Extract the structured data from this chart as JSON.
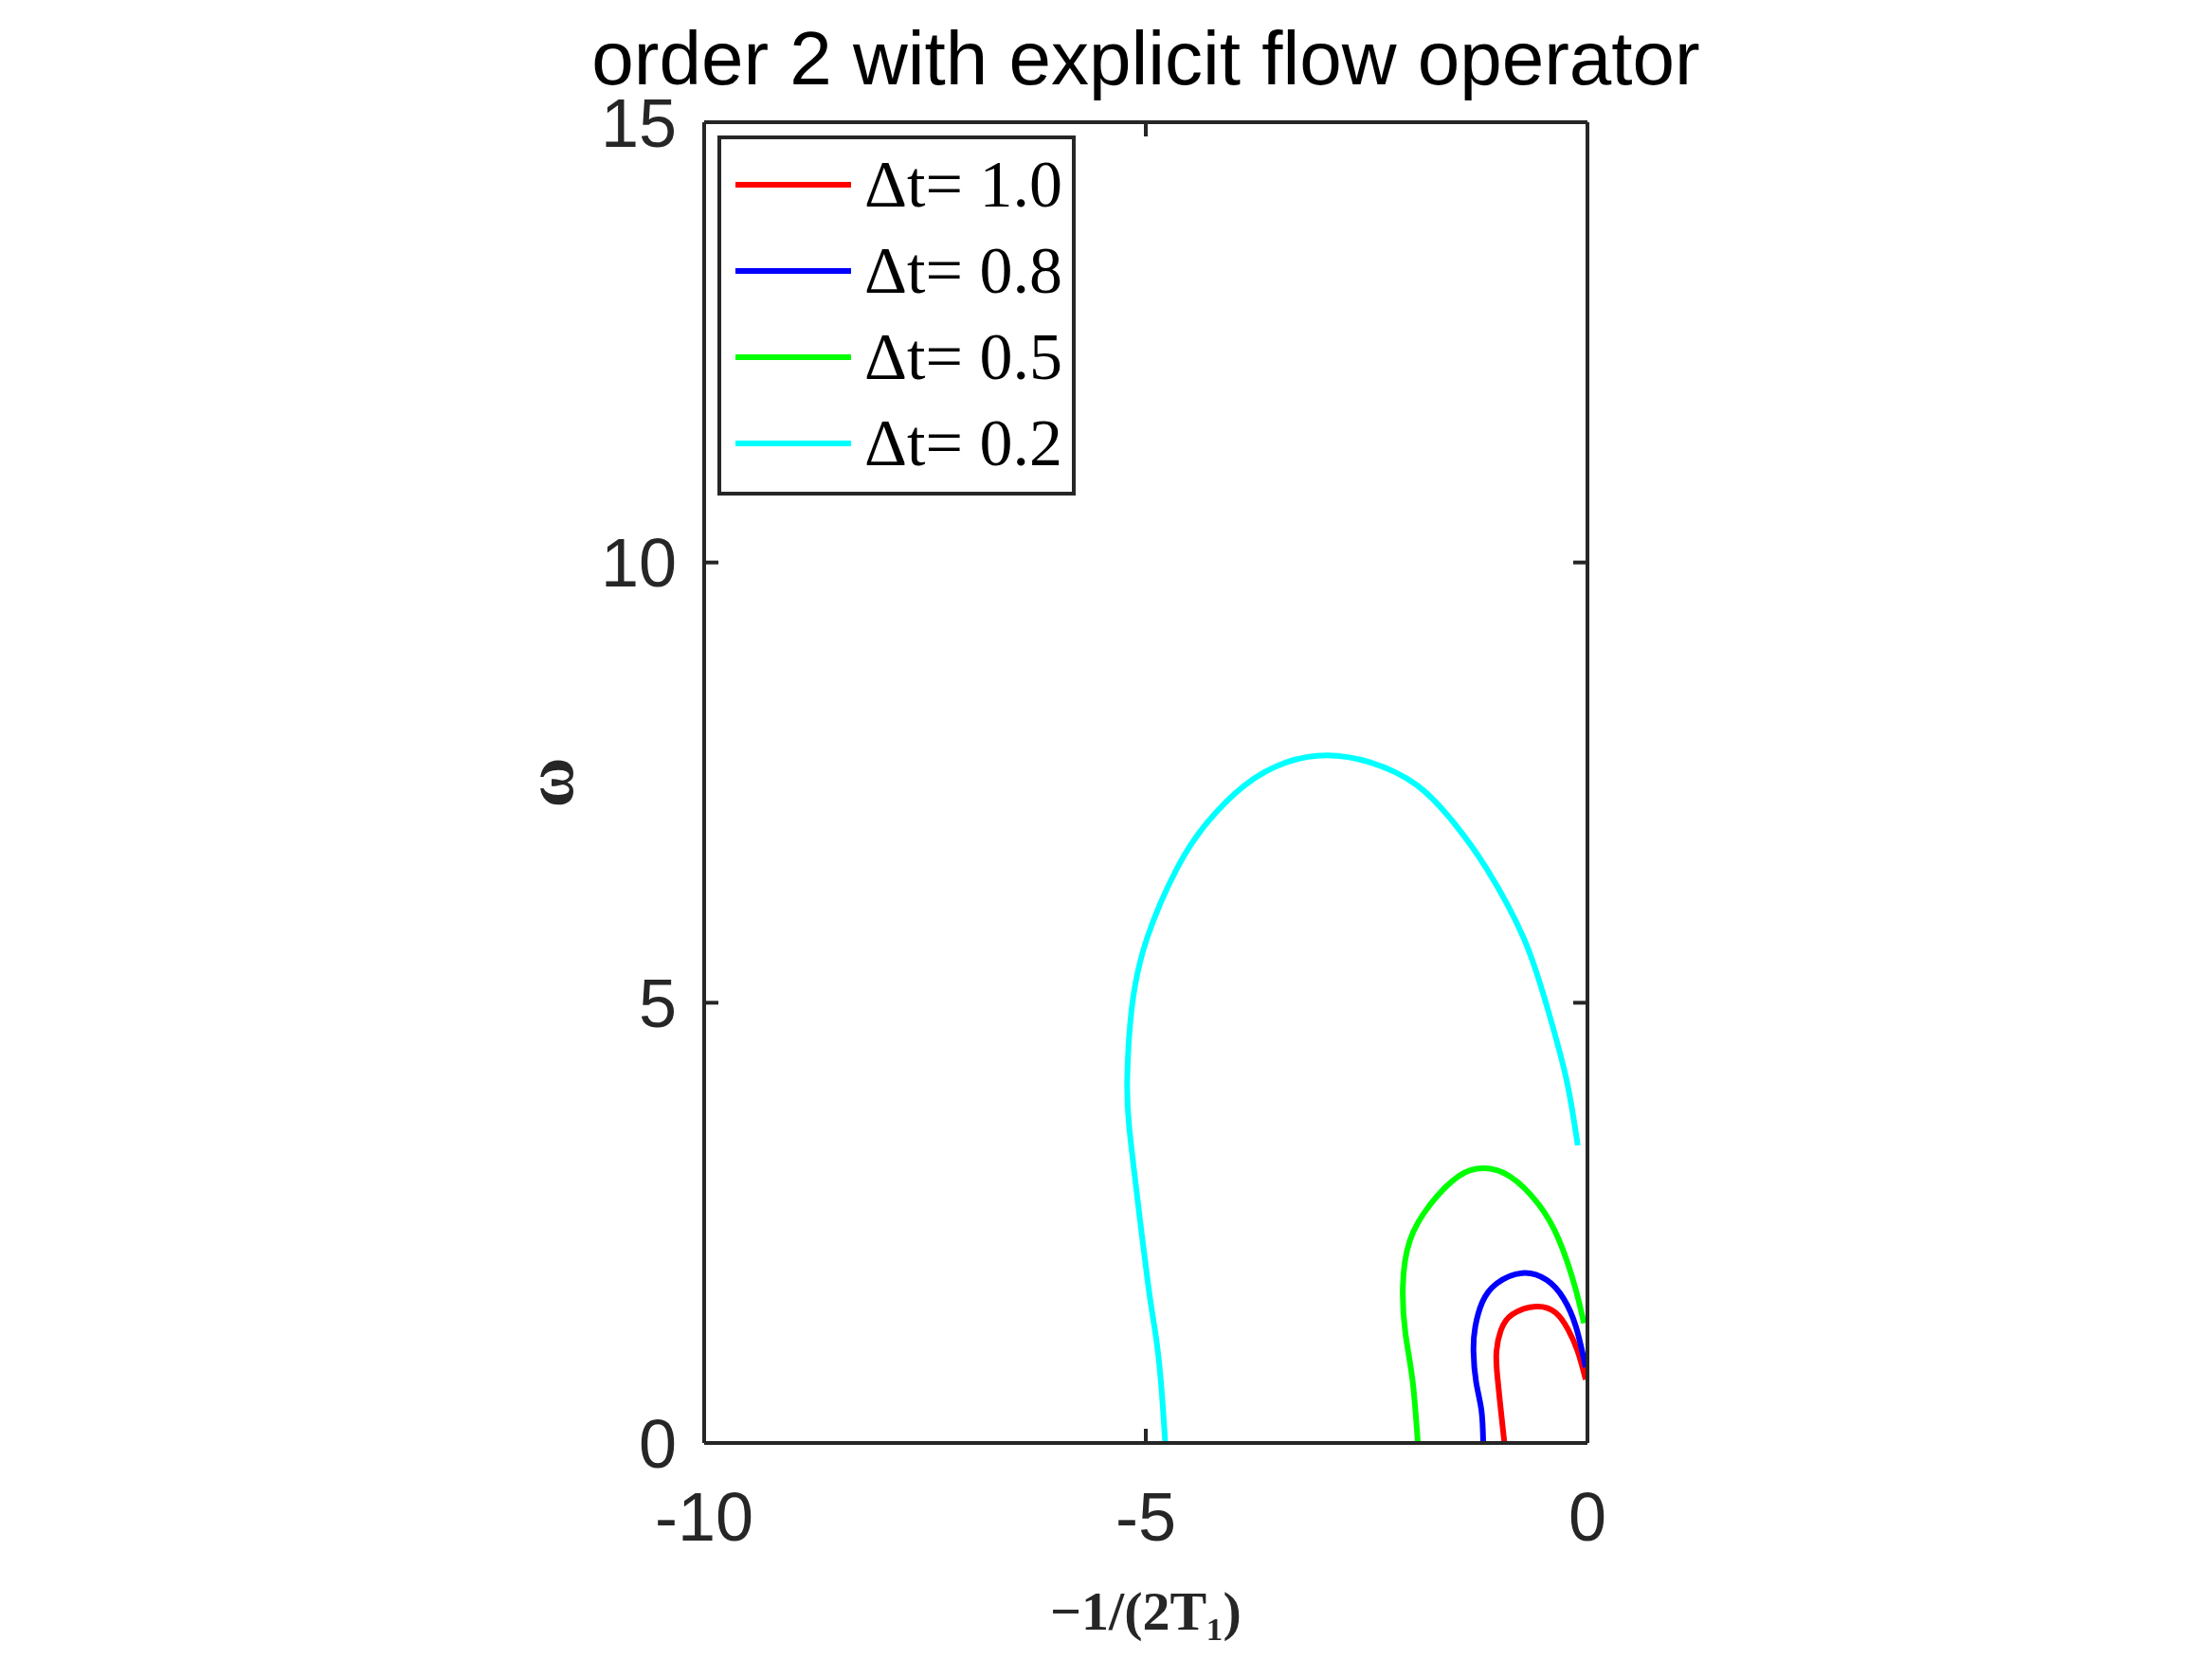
{
  "chart_data": {
    "type": "line",
    "title": "order 2 with explicit flow operator",
    "xlabel": "−1/(2T₁)",
    "ylabel": "ω",
    "xlim": [
      -10,
      0
    ],
    "ylim": [
      0,
      15
    ],
    "xticks": [
      -10,
      -5,
      0
    ],
    "yticks": [
      0,
      5,
      10,
      15
    ],
    "legend": "top left",
    "line_style": "solid",
    "series": [
      {
        "name": "Δt= 1.0",
        "color": "#ff0000",
        "x": [
          -0.94,
          -0.98,
          -1.02,
          -1.03,
          -0.98,
          -0.85,
          -0.58,
          -0.36,
          -0.22,
          -0.11,
          -0.02
        ],
        "values": [
          0,
          0.37,
          0.76,
          1.04,
          1.28,
          1.46,
          1.55,
          1.48,
          1.29,
          1.04,
          0.72
        ]
      },
      {
        "name": "Δt= 0.8",
        "color": "#0000ff",
        "x": [
          -1.18,
          -1.2,
          -1.26,
          -1.29,
          -1.27,
          -1.19,
          -1.03,
          -0.74,
          -0.46,
          -0.27,
          -0.13,
          -0.02
        ],
        "values": [
          0,
          0.37,
          0.69,
          1.04,
          1.32,
          1.6,
          1.81,
          1.93,
          1.85,
          1.64,
          1.32,
          0.86
        ]
      },
      {
        "name": "Δt= 0.5",
        "color": "#00ff00",
        "x": [
          -1.92,
          -1.98,
          -2.06,
          -2.09,
          -2.01,
          -1.77,
          -1.46,
          -1.18,
          -0.88,
          -0.56,
          -0.32,
          -0.14,
          -0.04
        ],
        "values": [
          0,
          0.71,
          1.24,
          1.77,
          2.3,
          2.72,
          3.03,
          3.12,
          3.03,
          2.72,
          2.3,
          1.77,
          1.36
        ]
      },
      {
        "name": "Δt= 0.2",
        "color": "#00ffff",
        "x": [
          -4.78,
          -4.83,
          -4.89,
          -4.97,
          -5.1,
          -5.19,
          -5.21,
          -5.16,
          -4.99,
          -4.65,
          -4.31,
          -3.88,
          -3.41,
          -2.95,
          -2.46,
          -1.93,
          -1.51,
          -1.14,
          -0.72,
          -0.45,
          -0.24,
          -0.11
        ],
        "values": [
          0,
          0.71,
          1.24,
          1.77,
          2.82,
          3.61,
          4.14,
          4.93,
          5.72,
          6.52,
          7.04,
          7.47,
          7.73,
          7.81,
          7.73,
          7.47,
          7.04,
          6.52,
          5.73,
          4.93,
          4.14,
          3.38
        ]
      }
    ]
  }
}
